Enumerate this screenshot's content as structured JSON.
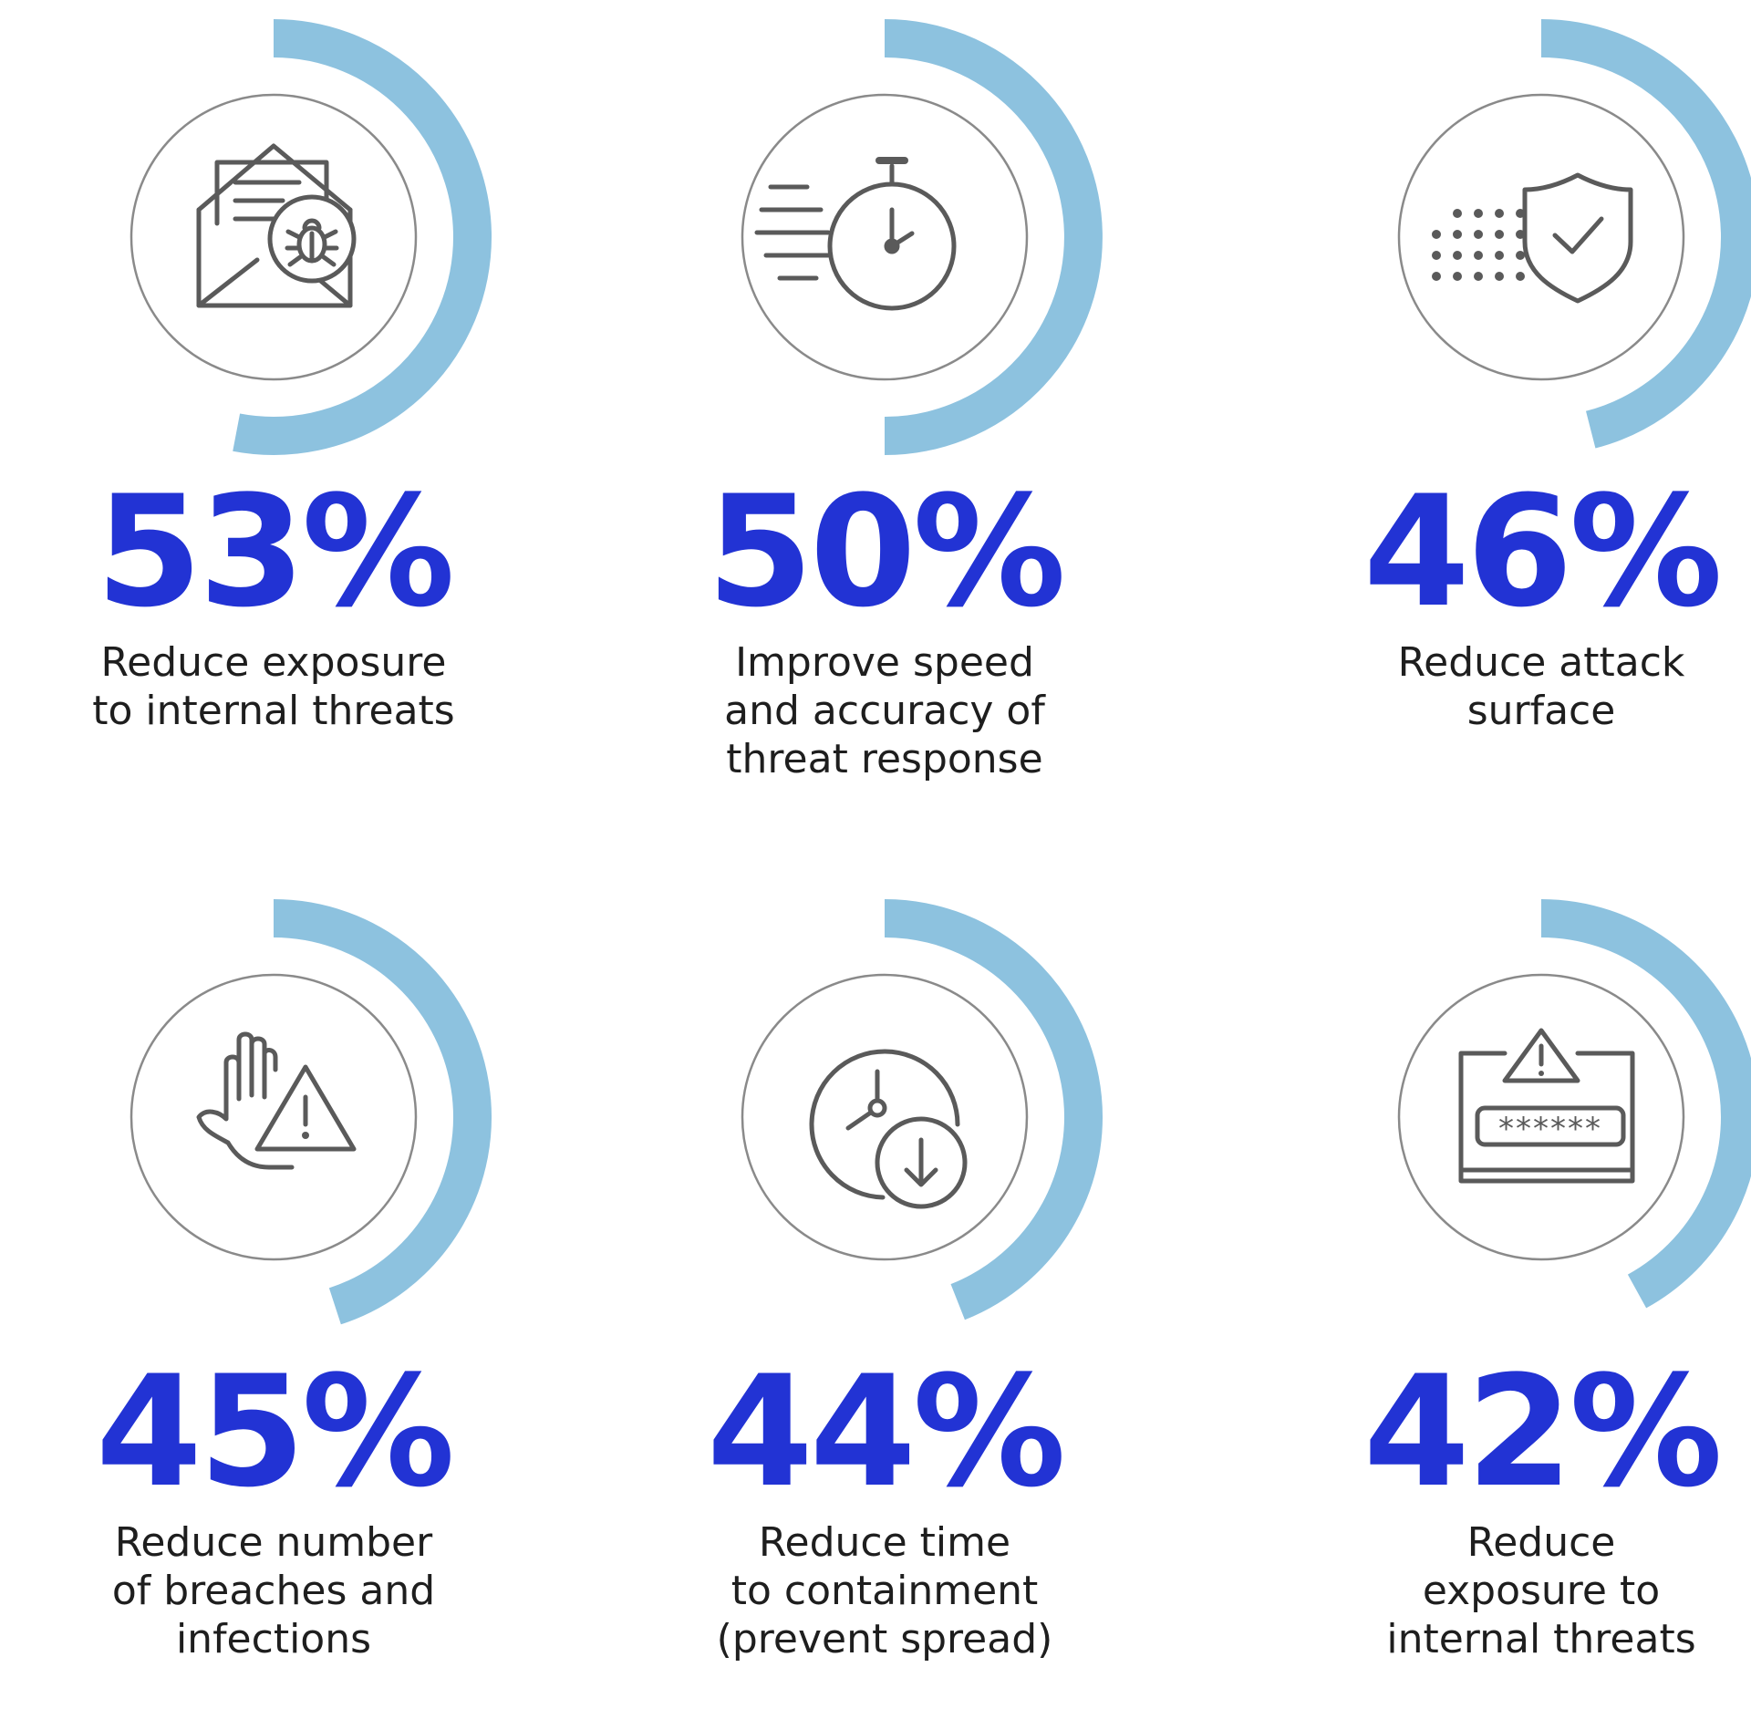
{
  "colors": {
    "percent": "#2233D4",
    "ring_arc": "#8DC2DF",
    "ring_outline": "#8A8A8A",
    "icon": "#5A5A5A",
    "text": "#1E1E1E"
  },
  "chart_data": {
    "type": "radial-progress",
    "title": "",
    "items": [
      {
        "value": 53,
        "label": "53%",
        "description": "Reduce exposure to internal threats",
        "lines": [
          "Reduce exposure",
          "to internal threats"
        ],
        "icon": "envelope-bug-icon"
      },
      {
        "value": 50,
        "label": "50%",
        "description": "Improve speed and accuracy of threat response",
        "lines": [
          "Improve speed",
          "and accuracy of",
          "threat response"
        ],
        "icon": "stopwatch-icon"
      },
      {
        "value": 46,
        "label": "46%",
        "description": "Reduce attack surface",
        "lines": [
          "Reduce attack",
          "surface"
        ],
        "icon": "shield-check-icon"
      },
      {
        "value": 45,
        "label": "45%",
        "description": "Reduce number of breaches and infections",
        "lines": [
          "Reduce number",
          "of breaches and",
          "infections"
        ],
        "icon": "hand-warning-icon"
      },
      {
        "value": 44,
        "label": "44%",
        "description": "Reduce time to containment (prevent spread)",
        "lines": [
          "Reduce time",
          "to containment",
          "(prevent spread)"
        ],
        "icon": "clock-down-icon"
      },
      {
        "value": 42,
        "label": "42%",
        "description": "Reduce exposure to internal threats",
        "lines": [
          "Reduce",
          "exposure to",
          "internal threats"
        ],
        "icon": "password-warning-icon"
      }
    ]
  }
}
